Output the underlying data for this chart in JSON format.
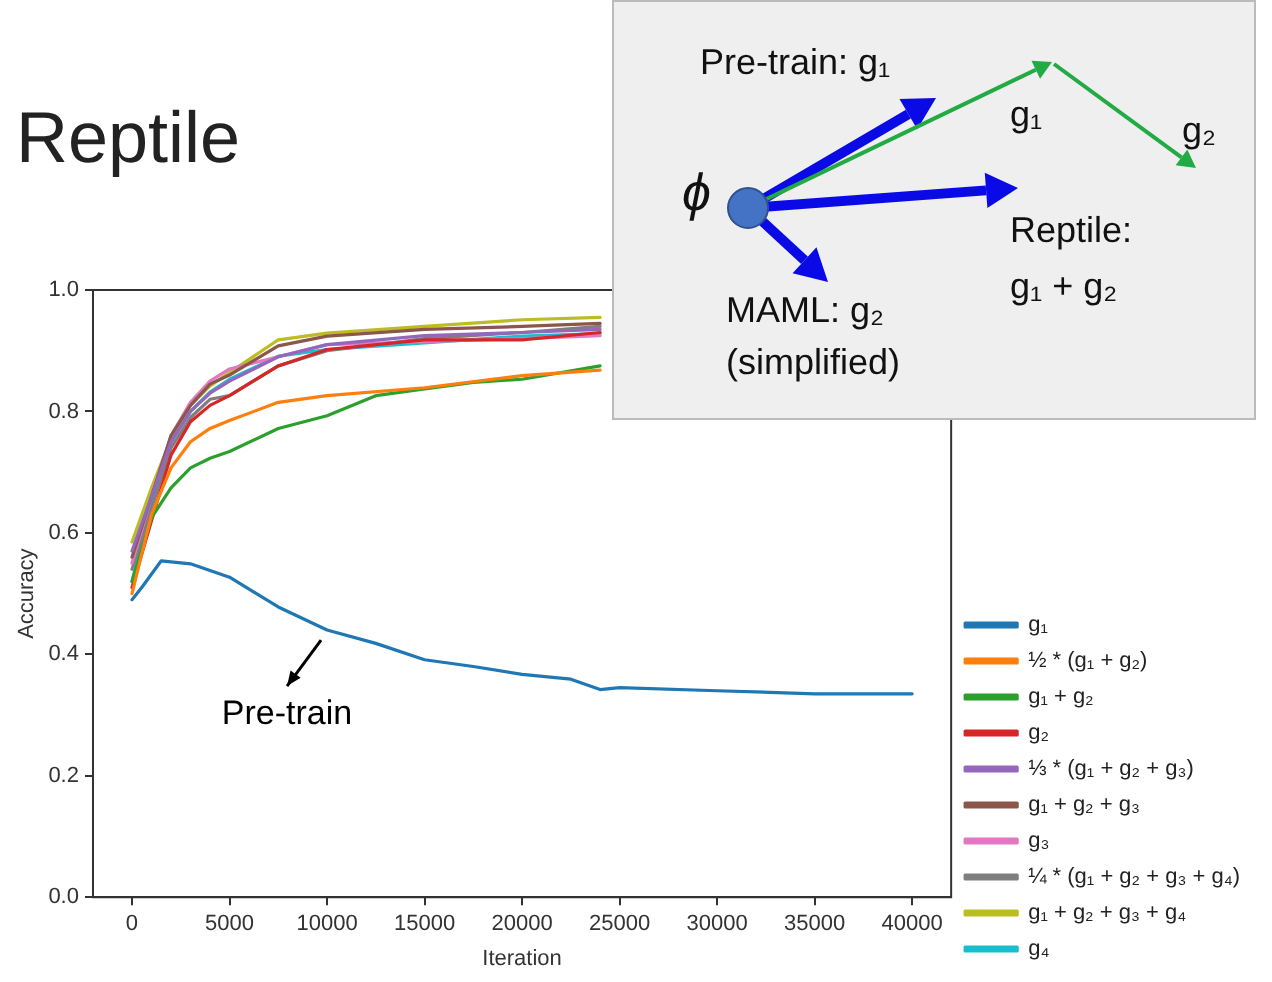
{
  "chart_data": {
    "type": "line",
    "title": "Reptile",
    "xlabel": "Iteration",
    "ylabel": "Accuracy",
    "xlim": [
      -2000,
      42000
    ],
    "xticks": [
      0,
      5000,
      10000,
      15000,
      20000,
      25000,
      30000,
      35000,
      40000
    ],
    "ylim": [
      0,
      1
    ],
    "yticks": [
      {
        "value": 0,
        "label": "0.0"
      },
      0.2,
      0.4,
      0.6,
      0.8,
      {
        "value": 1,
        "label": "1.0"
      }
    ],
    "grid": false,
    "legend": "right",
    "marker": "none",
    "line_style": "solid",
    "annotations": [
      "Pre-train: g₁",
      "g₁",
      "g₂",
      "ϕ",
      "Reptile:",
      "g₁ + g₂",
      "MAML: g₂",
      "(simplified)",
      {
        "text": "Pre-train",
        "x": 10000,
        "y": 0.44
      }
    ],
    "series": [
      {
        "name": "g₁",
        "color": "#1f77b4",
        "x": [
          0,
          500,
          1500,
          3000,
          5000,
          7500,
          10000,
          12500,
          15000,
          17500,
          20000,
          22500,
          24000,
          25000,
          30000,
          35000,
          40000
        ],
        "values": [
          0.49,
          0.51,
          0.554,
          0.549,
          0.527,
          0.478,
          0.44,
          0.418,
          0.391,
          0.38,
          0.367,
          0.359,
          0.342,
          0.345,
          0.34,
          0.335,
          0.335
        ]
      },
      {
        "name": "½ * (g₁ + g₂)",
        "color": "#ff7f0e",
        "x": [
          0,
          1000,
          2000,
          3000,
          4000,
          5000,
          7500,
          10000,
          15000,
          20000,
          24000
        ],
        "values": [
          0.5,
          0.63,
          0.707,
          0.75,
          0.772,
          0.785,
          0.815,
          0.826,
          0.839,
          0.859,
          0.868
        ]
      },
      {
        "name": "g₁ + g₂",
        "color": "#2ca02c",
        "x": [
          0,
          1000,
          2000,
          3000,
          4000,
          5000,
          7500,
          10000,
          12500,
          15000,
          17500,
          20000,
          24000
        ],
        "values": [
          0.52,
          0.625,
          0.674,
          0.707,
          0.723,
          0.734,
          0.772,
          0.793,
          0.826,
          0.837,
          0.848,
          0.853,
          0.875
        ]
      },
      {
        "name": "g₂",
        "color": "#d62728",
        "x": [
          0,
          1000,
          2000,
          3000,
          4000,
          5000,
          7500,
          10000,
          15000,
          20000,
          24000
        ],
        "values": [
          0.51,
          0.62,
          0.728,
          0.783,
          0.81,
          0.826,
          0.875,
          0.902,
          0.918,
          0.918,
          0.93
        ]
      },
      {
        "name": "⅓ * (g₁ + g₂ + g₃)",
        "color": "#9467bd",
        "x": [
          0,
          1000,
          2000,
          3000,
          4000,
          5000,
          7500,
          10000,
          15000,
          20000,
          24000
        ],
        "values": [
          0.57,
          0.66,
          0.75,
          0.8,
          0.83,
          0.85,
          0.89,
          0.91,
          0.925,
          0.93,
          0.935
        ]
      },
      {
        "name": "g₁ + g₂ + g₃",
        "color": "#8c564b",
        "x": [
          0,
          1000,
          2000,
          3000,
          4000,
          5000,
          7500,
          10000,
          15000,
          20000,
          24000
        ],
        "values": [
          0.56,
          0.66,
          0.76,
          0.81,
          0.845,
          0.86,
          0.908,
          0.924,
          0.935,
          0.94,
          0.945
        ]
      },
      {
        "name": "g₃",
        "color": "#e377c2",
        "x": [
          0,
          1000,
          2000,
          3000,
          4000,
          5000,
          7500,
          10000,
          15000,
          20000,
          24000
        ],
        "values": [
          0.55,
          0.66,
          0.76,
          0.815,
          0.85,
          0.87,
          0.89,
          0.91,
          0.915,
          0.92,
          0.925
        ]
      },
      {
        "name": "¼ * (g₁ + g₂ + g₃ + g₄)",
        "color": "#7f7f7f",
        "x": [
          0,
          1000,
          2000,
          3000,
          4000,
          5000,
          7500,
          10000,
          15000,
          20000,
          24000
        ],
        "values": [
          0.54,
          0.64,
          0.74,
          0.79,
          0.82,
          0.826,
          0.875,
          0.9,
          0.92,
          0.93,
          0.94
        ]
      },
      {
        "name": "g₁ + g₂ + g₃ + g₄",
        "color": "#bcbd22",
        "x": [
          0,
          1000,
          2000,
          3000,
          4000,
          5000,
          7500,
          10000,
          15000,
          20000,
          24000
        ],
        "values": [
          0.585,
          0.674,
          0.755,
          0.81,
          0.842,
          0.864,
          0.918,
          0.929,
          0.94,
          0.951,
          0.955
        ]
      },
      {
        "name": "g₄",
        "color": "#17becf",
        "x": [
          0,
          1000,
          2000,
          3000,
          4000,
          5000,
          7500,
          10000,
          15000,
          20000,
          24000
        ],
        "values": [
          0.52,
          0.65,
          0.75,
          0.8,
          0.832,
          0.853,
          0.891,
          0.902,
          0.913,
          0.924,
          0.928
        ]
      }
    ]
  }
}
